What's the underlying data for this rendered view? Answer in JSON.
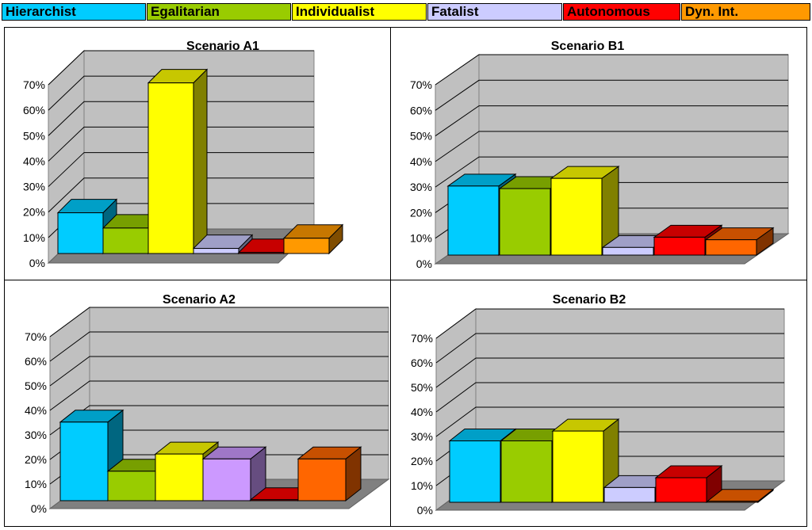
{
  "legend": [
    {
      "name": "Hierarchist",
      "color": "#00ccff"
    },
    {
      "name": "Egalitarian",
      "color": "#99cc00"
    },
    {
      "name": "Individualist",
      "color": "#ffff00"
    },
    {
      "name": "Fatalist",
      "color": "#ccccff"
    },
    {
      "name": "Autonomous",
      "color": "#ff0000"
    },
    {
      "name": "Dyn. Int.",
      "color": "#ff9900"
    }
  ],
  "chart_data": [
    {
      "type": "bar",
      "title": "Scenario A1",
      "categories": [
        "Hierarchist",
        "Egalitarian",
        "Individualist",
        "Fatalist",
        "Autonomous",
        "Dyn. Int."
      ],
      "values": [
        16,
        10,
        67,
        2,
        0,
        6
      ],
      "colors": [
        "#00ccff",
        "#99cc00",
        "#ffff00",
        "#ccccff",
        "#ff0000",
        "#ff9900"
      ],
      "ylim": [
        0,
        70
      ],
      "yticks": [
        "0%",
        "10%",
        "20%",
        "30%",
        "40%",
        "50%",
        "60%",
        "70%"
      ],
      "grid": true
    },
    {
      "type": "bar",
      "title": "Scenario B1",
      "categories": [
        "Hierarchist",
        "Egalitarian",
        "Individualist",
        "Fatalist",
        "Autonomous",
        "Dyn. Int."
      ],
      "values": [
        27,
        26,
        30,
        3,
        7,
        6
      ],
      "colors": [
        "#00ccff",
        "#99cc00",
        "#ffff00",
        "#ccccff",
        "#ff0000",
        "#ff6600"
      ],
      "ylim": [
        0,
        70
      ],
      "yticks": [
        "0%",
        "10%",
        "20%",
        "30%",
        "40%",
        "50%",
        "60%",
        "70%"
      ],
      "grid": true
    },
    {
      "type": "bar",
      "title": "Scenario A2",
      "categories": [
        "Hierarchist",
        "Egalitarian",
        "Individualist",
        "Fatalist",
        "Autonomous",
        "Dyn. Int."
      ],
      "values": [
        32,
        12,
        19,
        17,
        0,
        17
      ],
      "colors": [
        "#00ccff",
        "#99cc00",
        "#ffff00",
        "#cc99ff",
        "#ff0000",
        "#ff6600"
      ],
      "ylim": [
        0,
        70
      ],
      "yticks": [
        "0%",
        "10%",
        "20%",
        "30%",
        "40%",
        "50%",
        "60%",
        "70%"
      ],
      "grid": true
    },
    {
      "type": "bar",
      "title": "Scenario B2",
      "categories": [
        "Hierarchist",
        "Egalitarian",
        "Individualist",
        "Fatalist",
        "Autonomous",
        "Dyn. Int."
      ],
      "values": [
        25,
        25,
        29,
        6,
        10,
        0
      ],
      "colors": [
        "#00ccff",
        "#99cc00",
        "#ffff00",
        "#ccccff",
        "#ff0000",
        "#ff6600"
      ],
      "ylim": [
        0,
        70
      ],
      "yticks": [
        "0%",
        "10%",
        "20%",
        "30%",
        "40%",
        "50%",
        "60%",
        "70%"
      ],
      "grid": true
    }
  ]
}
